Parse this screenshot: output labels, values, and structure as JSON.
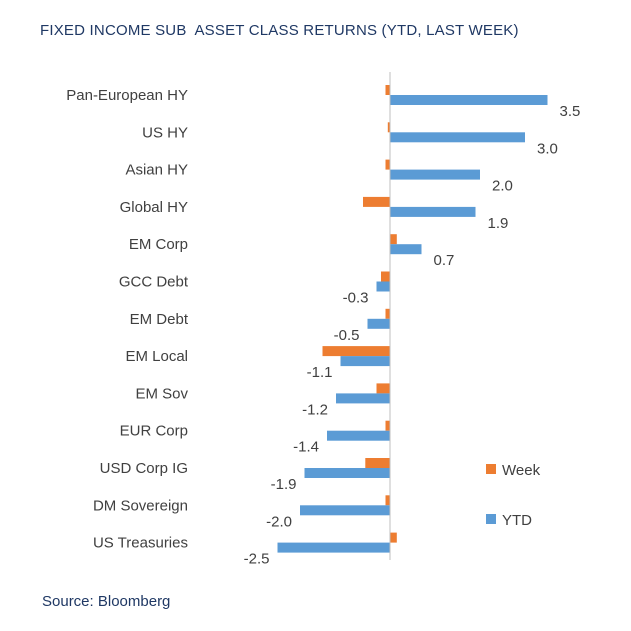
{
  "chart_data": {
    "type": "bar",
    "orientation": "horizontal",
    "title": "FIXED INCOME SUB  ASSET CLASS RETURNS (YTD, LAST WEEK)",
    "source": "Source: Bloomberg",
    "categories": [
      "Pan-European HY",
      "US HY",
      "Asian HY",
      "Global HY",
      "EM Corp",
      "GCC Debt",
      "EM Debt",
      "EM Local",
      "EM Sov",
      "EUR Corp",
      "USD Corp IG",
      "DM Sovereign",
      "US Treasuries"
    ],
    "series": [
      {
        "name": "Week",
        "values": [
          -0.1,
          -0.05,
          -0.1,
          -0.6,
          0.15,
          -0.2,
          -0.1,
          -1.5,
          -0.3,
          -0.1,
          -0.55,
          -0.1,
          0.15
        ],
        "color": "#ed7d31"
      },
      {
        "name": "YTD",
        "values": [
          3.5,
          3.0,
          2.0,
          1.9,
          0.7,
          -0.3,
          -0.5,
          -1.1,
          -1.2,
          -1.4,
          -1.9,
          -2.0,
          -2.5
        ],
        "color": "#5b9bd5"
      }
    ],
    "ytd_labels": [
      "3.5",
      "3.0",
      "2.0",
      "1.9",
      "0.7",
      "-0.3",
      "-0.5",
      "-1.1",
      "-1.2",
      "-1.4",
      "-1.9",
      "-2.0",
      "-2.5"
    ],
    "xlim": [
      -2.5,
      3.5
    ],
    "legend_position": "right",
    "grid": false
  }
}
